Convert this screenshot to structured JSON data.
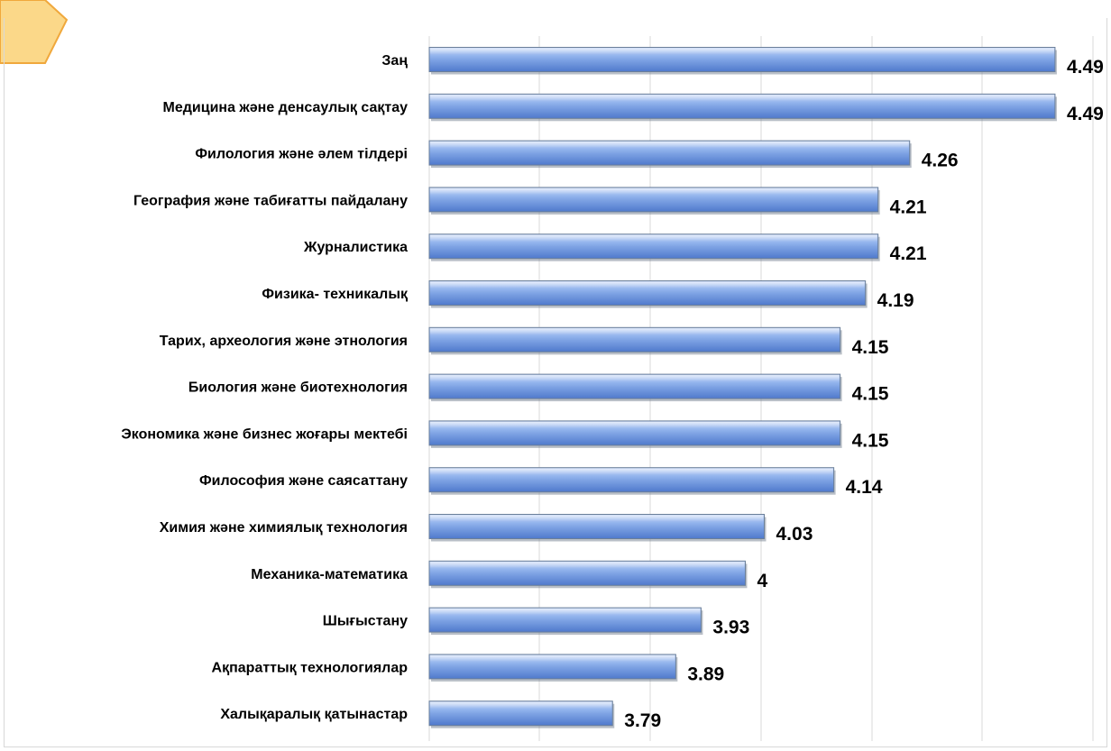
{
  "colors": {
    "bar_light": "#c9d9f7",
    "bar_mid": "#8eb1ec",
    "bar_dark": "#4f79cc",
    "bar_edge": "#6b7f99",
    "grid": "#d9d9d9",
    "tab_fill": "#fbd889",
    "tab_edge": "#f0a83c"
  },
  "chart_data": {
    "type": "bar",
    "orientation": "horizontal",
    "title": "",
    "xlabel": "",
    "ylabel": "",
    "xlim": [
      3.5,
      4.55
    ],
    "grid": true,
    "legend": "none",
    "categories": [
      "Заң",
      "Медицина және денсаулық сақтау",
      "Филология және әлем тілдері",
      "География және табиғатты пайдалану",
      "Журналистика",
      "Физика- техникалық",
      "Тарих, археология және этнология",
      "Биология және биотехнология",
      "Экономика және бизнес жоғары мектебі",
      "Философия және саясаттану",
      "Химия және химиялық технология",
      "Механика-математика",
      "Шығыстану",
      "Ақпараттық технологиялар",
      "Халықаралық қатынастар"
    ],
    "values": [
      4.49,
      4.49,
      4.26,
      4.21,
      4.21,
      4.19,
      4.15,
      4.15,
      4.15,
      4.14,
      4.03,
      4,
      3.93,
      3.89,
      3.79
    ],
    "value_labels": [
      "4.49",
      "4.49",
      "4.26",
      "4.21",
      "4.21",
      "4.19",
      "4.15",
      "4.15",
      "4.15",
      "4.14",
      "4.03",
      "4",
      "3.93",
      "3.89",
      "3.79"
    ]
  }
}
